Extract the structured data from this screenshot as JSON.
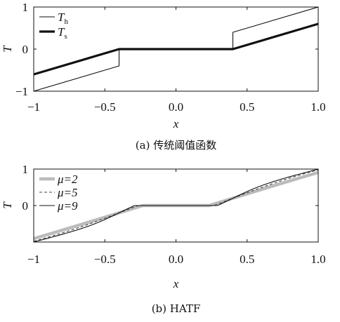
{
  "chart_data": [
    {
      "type": "line",
      "caption": "(a) 传统阈值函数",
      "xlabel": "x",
      "ylabel": "T",
      "xlim": [
        -1,
        1
      ],
      "ylim": [
        -1,
        1
      ],
      "xticks": [
        "−1",
        "−0.5",
        "0.0",
        "0.5",
        "1.0"
      ],
      "xtick_values": [
        -1,
        -0.5,
        0,
        0.5,
        1
      ],
      "yticks": [
        "1",
        "0",
        "−1"
      ],
      "ytick_values": [
        1,
        0,
        -1
      ],
      "legend_position": "top-left",
      "series": [
        {
          "name": "T",
          "subscript": "h",
          "style": "thin",
          "color": "#111111",
          "points": [
            [
              -1,
              -1
            ],
            [
              -0.4,
              -0.4
            ],
            [
              -0.4,
              0
            ],
            [
              0.4,
              0
            ],
            [
              0.4,
              0.4
            ],
            [
              1,
              1
            ]
          ]
        },
        {
          "name": "T",
          "subscript": "s",
          "style": "thick",
          "color": "#111111",
          "points": [
            [
              -1,
              -0.6
            ],
            [
              -0.4,
              0
            ],
            [
              0.4,
              0
            ],
            [
              1,
              0.6
            ]
          ]
        }
      ]
    },
    {
      "type": "line",
      "caption": "(b) HATF",
      "xlabel": "x",
      "ylabel": "T",
      "xlim": [
        -1,
        1
      ],
      "ylim": [
        -1,
        1
      ],
      "xticks": [
        "−1",
        "−0.5",
        "0.0",
        "0.5",
        "1.0"
      ],
      "xtick_values": [
        -1,
        -0.5,
        0,
        0.5,
        1
      ],
      "yticks": [
        "1",
        "0"
      ],
      "ytick_values": [
        1,
        0
      ],
      "legend_position": "top-left",
      "series": [
        {
          "name": "μ=2",
          "style": "thick-gray",
          "color": "#bbbbbb",
          "mu": 2
        },
        {
          "name": "μ=5",
          "style": "dashed",
          "color": "#444444",
          "mu": 5
        },
        {
          "name": "μ=9",
          "style": "thin",
          "color": "#111111",
          "mu": 9
        }
      ]
    }
  ]
}
